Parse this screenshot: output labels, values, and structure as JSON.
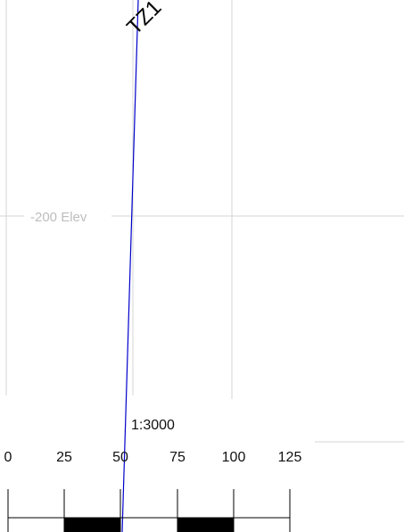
{
  "view": {
    "elevation_label": "-200 Elev",
    "well_label": "TZ1",
    "scale_ratio": "1:3000",
    "scale_ticks": [
      "0",
      "25",
      "50",
      "75",
      "100",
      "125"
    ],
    "colors": {
      "grid": "#d4d4d4",
      "elevation_label": "#bdbdbd",
      "well_path": "#0000cc",
      "scale_bar": "#000000"
    }
  }
}
